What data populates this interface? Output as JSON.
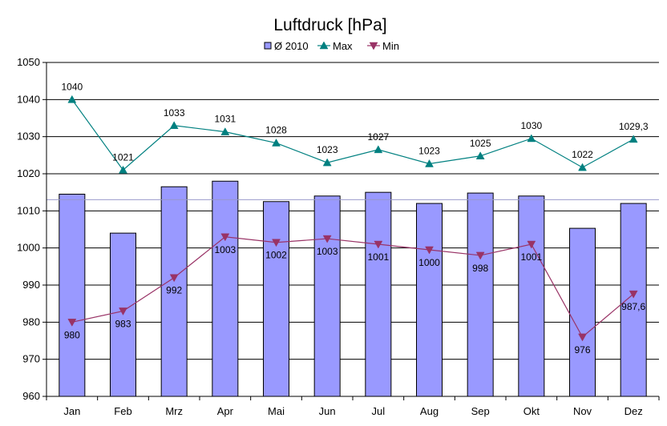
{
  "chart_data": {
    "type": "bar",
    "title": "Luftdruck [hPa]",
    "xlabel": "",
    "ylabel": "",
    "categories": [
      "Jan",
      "Feb",
      "Mrz",
      "Apr",
      "Mai",
      "Jun",
      "Jul",
      "Aug",
      "Sep",
      "Okt",
      "Nov",
      "Dez"
    ],
    "ylim": [
      960,
      1050
    ],
    "yticks": [
      "960",
      "970",
      "980",
      "990",
      "1000",
      "1010",
      "1020",
      "1030",
      "1040",
      "1050"
    ],
    "grid": true,
    "legend_position": "top",
    "reference_line": 1013,
    "series": [
      {
        "name": "Ø 2010",
        "type": "bar",
        "color": "#9999ff",
        "values": [
          1014.5,
          1004,
          1016.5,
          1018,
          1012.5,
          1014,
          1015,
          1012,
          1014.8,
          1014,
          1005.3,
          1012
        ]
      },
      {
        "name": "Max",
        "type": "line",
        "marker": "triangle-up",
        "color": "#008080",
        "values": [
          1040,
          1021,
          1033,
          1031.3,
          1028.3,
          1023,
          1026.5,
          1022.7,
          1024.8,
          1029.5,
          1021.7,
          1029.3
        ],
        "labels": [
          "1040",
          "1021",
          "1033",
          "1031",
          "1028",
          "1023",
          "1027",
          "1023",
          "1025",
          "1030",
          "1022",
          "1029,3"
        ]
      },
      {
        "name": "Min",
        "type": "line",
        "marker": "triangle-down",
        "color": "#993366",
        "values": [
          980,
          983,
          992,
          1003,
          1001.5,
          1002.5,
          1001,
          999.5,
          998,
          1001,
          976,
          987.6
        ],
        "labels": [
          "980",
          "983",
          "992",
          "1003",
          "1002",
          "1003",
          "1001",
          "1000",
          "998",
          "1001",
          "976",
          "987,6"
        ]
      }
    ]
  }
}
